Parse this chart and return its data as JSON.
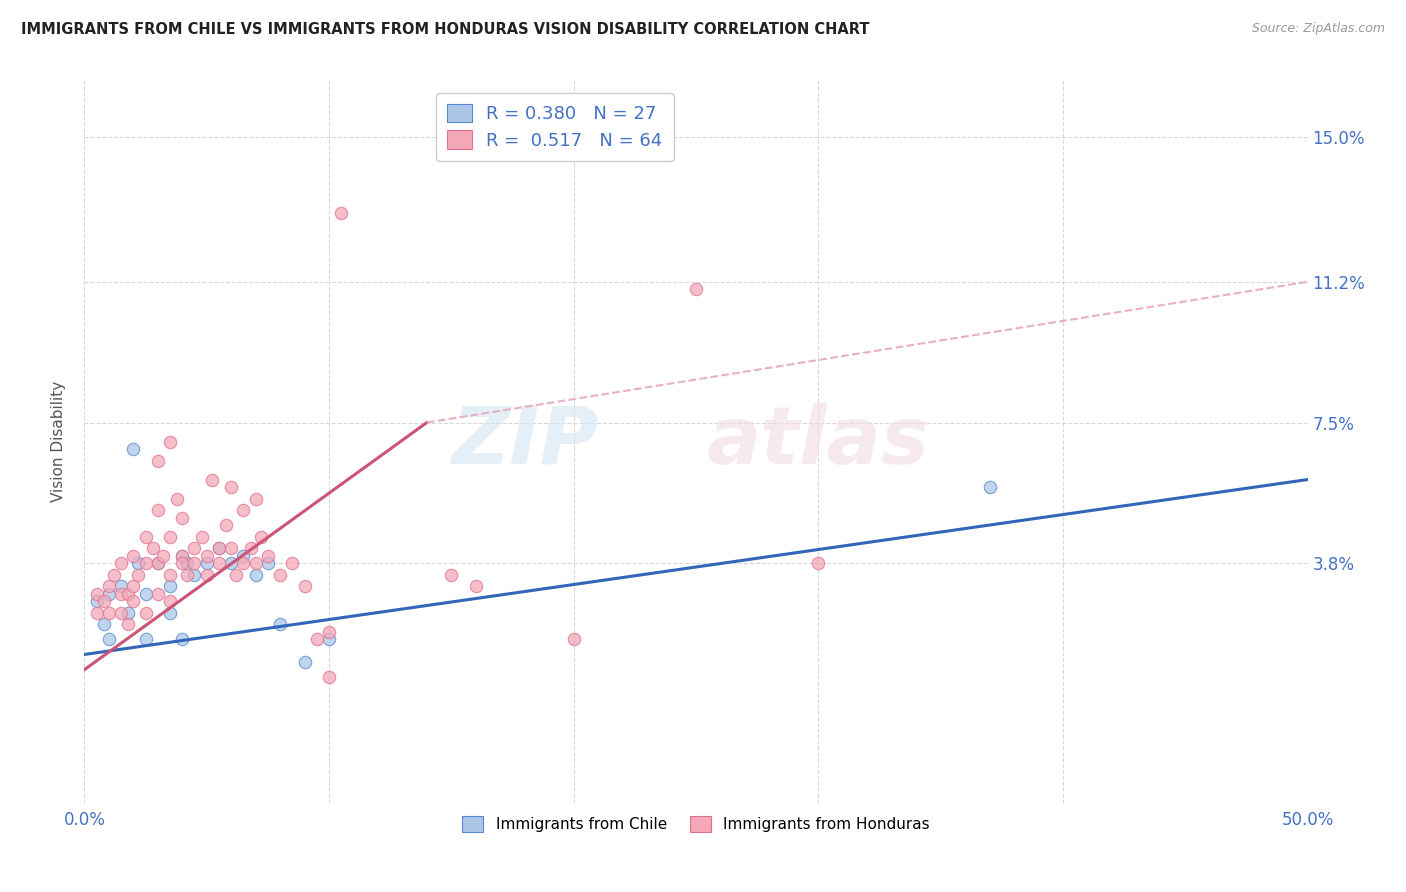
{
  "title": "IMMIGRANTS FROM CHILE VS IMMIGRANTS FROM HONDURAS VISION DISABILITY CORRELATION CHART",
  "source": "Source: ZipAtlas.com",
  "ylabel": "Vision Disability",
  "xlim": [
    0.0,
    0.5
  ],
  "ylim": [
    -0.025,
    0.165
  ],
  "ytick_labels": [
    "15.0%",
    "11.2%",
    "7.5%",
    "3.8%"
  ],
  "ytick_positions": [
    0.15,
    0.112,
    0.075,
    0.038
  ],
  "chile_color": "#adc6e8",
  "honduras_color": "#f4a8b8",
  "chile_edge_color": "#5588cc",
  "honduras_edge_color": "#e07090",
  "chile_line_color": "#3366bb",
  "honduras_line_color": "#cc5577",
  "dashed_color": "#e8b0c0",
  "R_chile": 0.38,
  "N_chile": 27,
  "R_honduras": 0.517,
  "N_honduras": 64,
  "legend_label_chile": "Immigrants from Chile",
  "legend_label_honduras": "Immigrants from Honduras",
  "watermark_zip": "ZIP",
  "watermark_atlas": "atlas",
  "background_color": "#ffffff",
  "grid_color": "#d8d8d8",
  "chile_scatter": [
    [
      0.005,
      0.028
    ],
    [
      0.008,
      0.022
    ],
    [
      0.01,
      0.03
    ],
    [
      0.01,
      0.018
    ],
    [
      0.015,
      0.032
    ],
    [
      0.018,
      0.025
    ],
    [
      0.02,
      0.068
    ],
    [
      0.022,
      0.038
    ],
    [
      0.025,
      0.03
    ],
    [
      0.025,
      0.018
    ],
    [
      0.03,
      0.038
    ],
    [
      0.035,
      0.032
    ],
    [
      0.035,
      0.025
    ],
    [
      0.04,
      0.04
    ],
    [
      0.04,
      0.018
    ],
    [
      0.042,
      0.038
    ],
    [
      0.045,
      0.035
    ],
    [
      0.05,
      0.038
    ],
    [
      0.055,
      0.042
    ],
    [
      0.06,
      0.038
    ],
    [
      0.065,
      0.04
    ],
    [
      0.07,
      0.035
    ],
    [
      0.075,
      0.038
    ],
    [
      0.08,
      0.022
    ],
    [
      0.09,
      0.012
    ],
    [
      0.1,
      0.018
    ],
    [
      0.37,
      0.058
    ]
  ],
  "honduras_scatter": [
    [
      0.005,
      0.03
    ],
    [
      0.005,
      0.025
    ],
    [
      0.008,
      0.028
    ],
    [
      0.01,
      0.032
    ],
    [
      0.01,
      0.025
    ],
    [
      0.012,
      0.035
    ],
    [
      0.015,
      0.03
    ],
    [
      0.015,
      0.025
    ],
    [
      0.015,
      0.038
    ],
    [
      0.018,
      0.022
    ],
    [
      0.018,
      0.03
    ],
    [
      0.02,
      0.04
    ],
    [
      0.02,
      0.032
    ],
    [
      0.02,
      0.028
    ],
    [
      0.022,
      0.035
    ],
    [
      0.025,
      0.038
    ],
    [
      0.025,
      0.045
    ],
    [
      0.025,
      0.025
    ],
    [
      0.028,
      0.042
    ],
    [
      0.03,
      0.052
    ],
    [
      0.03,
      0.038
    ],
    [
      0.03,
      0.03
    ],
    [
      0.032,
      0.04
    ],
    [
      0.035,
      0.045
    ],
    [
      0.035,
      0.035
    ],
    [
      0.035,
      0.028
    ],
    [
      0.038,
      0.055
    ],
    [
      0.04,
      0.05
    ],
    [
      0.04,
      0.04
    ],
    [
      0.04,
      0.038
    ],
    [
      0.042,
      0.035
    ],
    [
      0.045,
      0.042
    ],
    [
      0.045,
      0.038
    ],
    [
      0.048,
      0.045
    ],
    [
      0.05,
      0.04
    ],
    [
      0.05,
      0.035
    ],
    [
      0.052,
      0.06
    ],
    [
      0.055,
      0.042
    ],
    [
      0.055,
      0.038
    ],
    [
      0.058,
      0.048
    ],
    [
      0.06,
      0.058
    ],
    [
      0.06,
      0.042
    ],
    [
      0.062,
      0.035
    ],
    [
      0.065,
      0.052
    ],
    [
      0.065,
      0.038
    ],
    [
      0.068,
      0.042
    ],
    [
      0.07,
      0.055
    ],
    [
      0.07,
      0.038
    ],
    [
      0.072,
      0.045
    ],
    [
      0.075,
      0.04
    ],
    [
      0.03,
      0.065
    ],
    [
      0.035,
      0.07
    ],
    [
      0.08,
      0.035
    ],
    [
      0.085,
      0.038
    ],
    [
      0.09,
      0.032
    ],
    [
      0.095,
      0.018
    ],
    [
      0.1,
      0.008
    ],
    [
      0.1,
      0.02
    ],
    [
      0.105,
      0.13
    ],
    [
      0.15,
      0.035
    ],
    [
      0.16,
      0.032
    ],
    [
      0.2,
      0.018
    ],
    [
      0.25,
      0.11
    ],
    [
      0.3,
      0.038
    ]
  ],
  "chile_trend_x": [
    0.0,
    0.5
  ],
  "chile_trend_y": [
    0.014,
    0.06
  ],
  "honduras_trend_x": [
    0.0,
    0.14
  ],
  "honduras_trend_y": [
    0.01,
    0.075
  ],
  "dashed_trend_x": [
    0.14,
    0.5
  ],
  "dashed_trend_y": [
    0.075,
    0.112
  ]
}
